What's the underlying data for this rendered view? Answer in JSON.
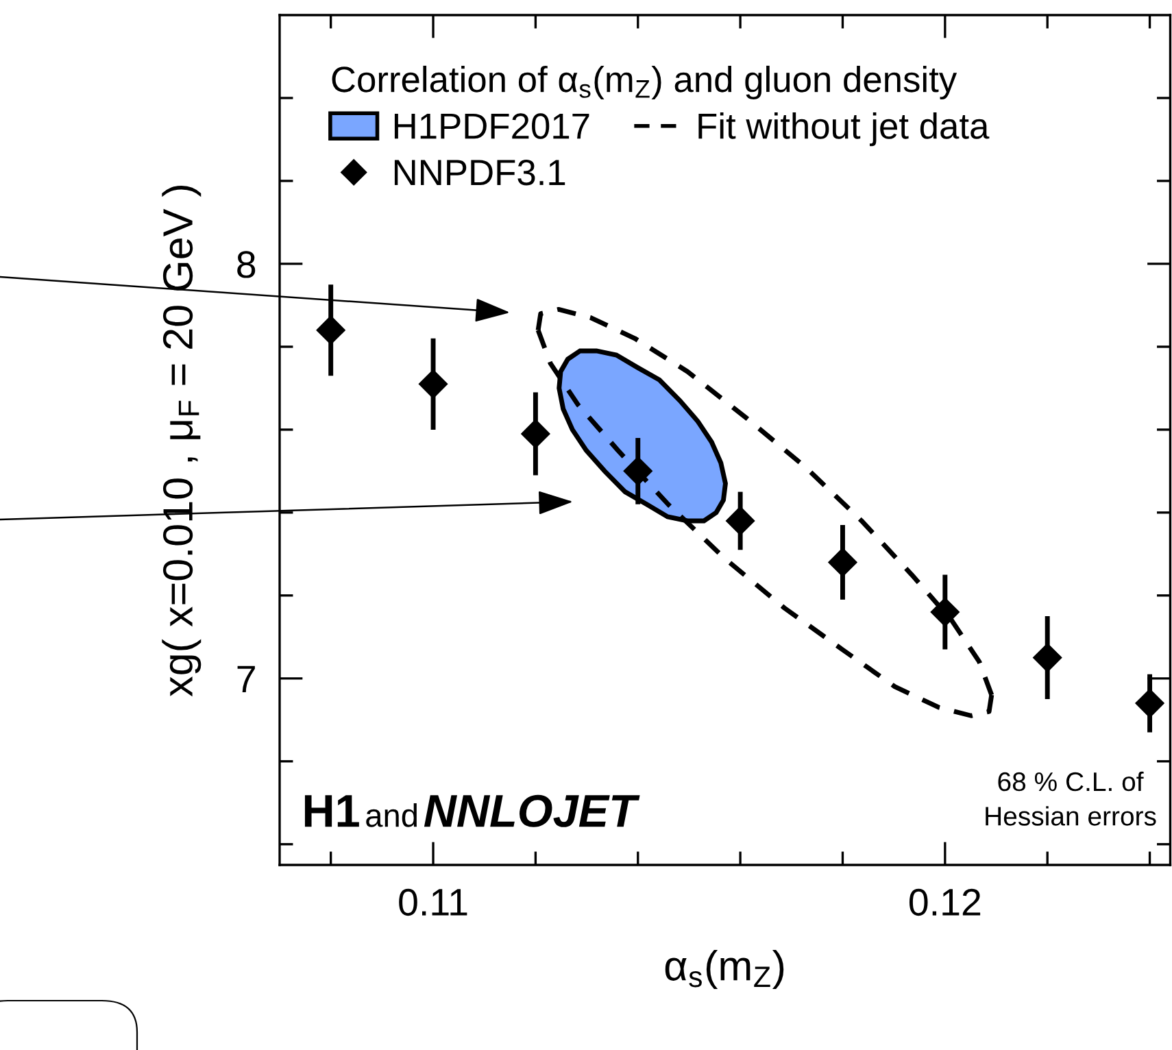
{
  "chart_data": {
    "type": "scatter",
    "xlabel": "α$_{s}$(m$_{Z}$)",
    "ylabel": "xg( x=0.010 , μ$_{F}$ = 20 GeV )",
    "legend_title": "Correlation of α$_{s}$(m$_{Z}$) and gluon density",
    "xlim": [
      0.107,
      0.1244
    ],
    "ylim": [
      6.55,
      8.6
    ],
    "xticks": [
      {
        "value": 0.108,
        "label": null
      },
      0.11,
      {
        "value": 0.112,
        "label": null
      },
      {
        "value": 0.114,
        "label": null
      },
      {
        "value": 0.116,
        "label": null
      },
      {
        "value": 0.118,
        "label": null
      },
      0.12,
      {
        "value": 0.122,
        "label": null
      },
      {
        "value": 0.124,
        "label": null
      }
    ],
    "yticks": [
      {
        "value": 6.6,
        "label": null
      },
      {
        "value": 6.8,
        "label": null
      },
      7,
      {
        "value": 7.2,
        "label": null
      },
      {
        "value": 7.4,
        "label": null
      },
      {
        "value": 7.6,
        "label": null
      },
      {
        "value": 7.8,
        "label": null
      },
      8,
      {
        "value": 8.2,
        "label": null
      },
      {
        "value": 8.4,
        "label": null
      }
    ],
    "grid": false,
    "legend": "top left",
    "series": [
      {
        "name": "H1PDF2017",
        "type": "area",
        "color": "#7aa6ff",
        "x": [
          0.11553,
          0.11567,
          0.11571,
          0.11562,
          0.11544,
          0.11517,
          0.11482,
          0.11442,
          0.11399,
          0.11358,
          0.11319,
          0.11287,
          0.11263,
          0.11249,
          0.11246,
          0.11254,
          0.11272,
          0.11299,
          0.11335,
          0.11375,
          0.11417,
          0.11458,
          0.11497,
          0.11529
        ],
        "values": [
          7.4,
          7.43,
          7.47,
          7.52,
          7.57,
          7.62,
          7.67,
          7.72,
          7.75,
          7.78,
          7.79,
          7.79,
          7.77,
          7.74,
          7.7,
          7.65,
          7.6,
          7.55,
          7.5,
          7.45,
          7.42,
          7.39,
          7.38,
          7.38
        ]
      },
      {
        "name": "NNPDF3.1",
        "color": "#000000",
        "marker": "diamond",
        "x": [
          0.108,
          0.11,
          0.112,
          0.114,
          0.116,
          0.118,
          0.12,
          0.122,
          0.124
        ],
        "values": [
          7.84,
          7.71,
          7.59,
          7.5,
          7.38,
          7.28,
          7.16,
          7.05,
          6.94
        ],
        "errors": [
          0.11,
          0.11,
          0.1,
          0.08,
          0.07,
          0.09,
          0.09,
          0.1,
          0.07
        ]
      },
      {
        "name": "Fit without jet data",
        "type": "line",
        "color": "#000000",
        "line_style": "dashed",
        "x": [
          0.11205,
          0.1121,
          0.11245,
          0.11308,
          0.11394,
          0.11497,
          0.1161,
          0.11727,
          0.11837,
          0.11935,
          0.12013,
          0.12067,
          0.12091
        ],
        "values": [
          7.84,
          7.88,
          7.89,
          7.87,
          7.82,
          7.74,
          7.63,
          7.51,
          7.38,
          7.25,
          7.14,
          7.04,
          6.96
        ]
      },
      {
        "type": "line",
        "color": "#000000",
        "line_style": "dashed",
        "x": [
          0.11205,
          0.11229,
          0.11283,
          0.11361,
          0.11459,
          0.11569,
          0.11686,
          0.11799,
          0.11902,
          0.11988,
          0.12051,
          0.12086,
          0.12091
        ],
        "values": [
          7.84,
          7.76,
          7.66,
          7.55,
          7.42,
          7.29,
          7.17,
          7.07,
          6.98,
          6.93,
          6.91,
          6.92,
          6.96
        ]
      }
    ],
    "annotations": [
      "H1",
      "and",
      "NNLOJET",
      "68 % C.L. of\nHessian errors"
    ]
  }
}
